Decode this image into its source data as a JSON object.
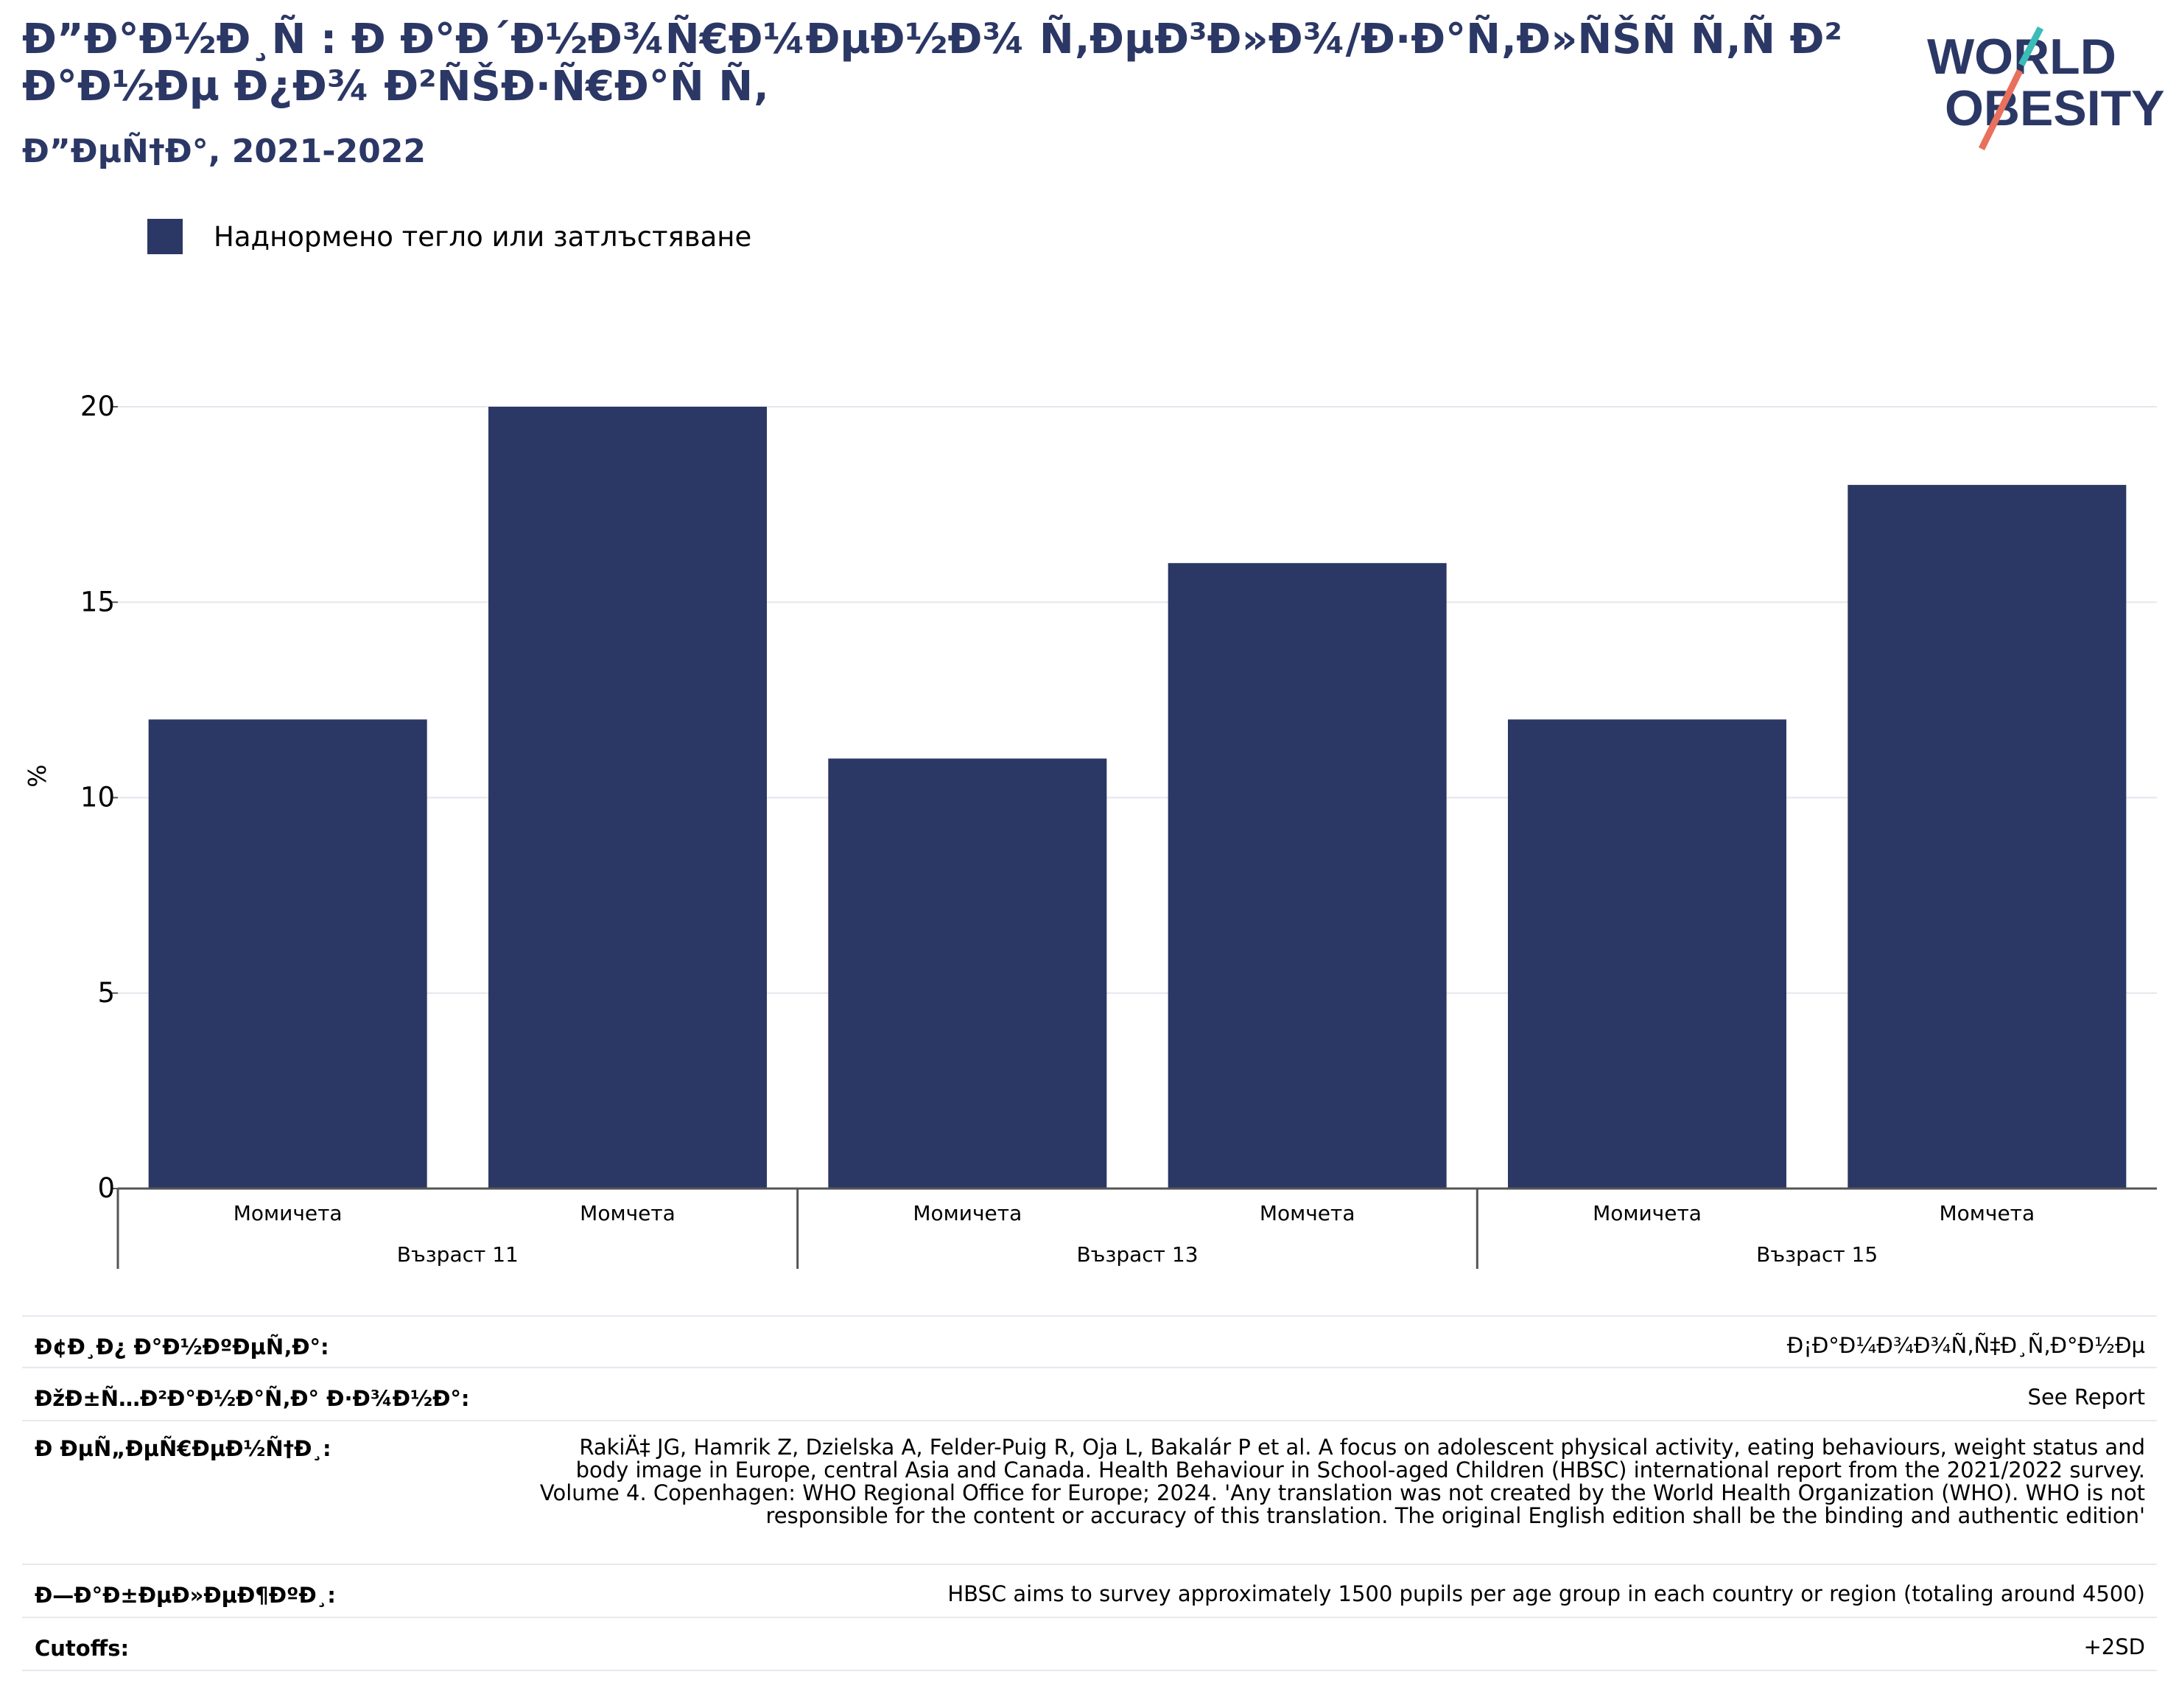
{
  "title": "Ð”Ð°Ð½Ð¸Ñ : Ð Ð°Ð´Ð½Ð¾Ñ€Ð¼ÐµÐ½Ð¾ Ñ‚ÐµÐ³Ð»Ð¾/Ð·Ð°Ñ‚Ð»ÑŠÑ Ñ‚Ñ Ð²Ð°Ð½Ðµ Ð¿Ð¾ Ð²ÑŠÐ·Ñ€Ð°Ñ Ñ‚",
  "subtitle": "Ð”ÐµÑ†Ð°, 2021-2022",
  "logo": {
    "line1": "WORLD",
    "line2": "OBESITY",
    "colors": {
      "text": "#2b3765",
      "teal": "#3bbcb8",
      "coral": "#e8705d"
    }
  },
  "colors": {
    "bar": "#2b3765",
    "grid": "#e6e6ee",
    "axis": "#555555"
  },
  "chart_data": {
    "type": "bar",
    "title": "",
    "ylabel": "%",
    "ylim": [
      0,
      20
    ],
    "yticks": [
      "0",
      "5",
      "10",
      "15",
      "20"
    ],
    "grid": true,
    "legend_position": "top-left",
    "series": [
      {
        "name": "Наднормено тегло или затлъстяване",
        "values": [
          12,
          20,
          11,
          16,
          12,
          18
        ]
      }
    ],
    "categories": [
      "Момичета",
      "Момчета",
      "Момичета",
      "Момчета",
      "Момичета",
      "Момчета"
    ],
    "groups": [
      {
        "label": "Възраст 11",
        "count": 2
      },
      {
        "label": "Възраст 13",
        "count": 2
      },
      {
        "label": "Възраст 15",
        "count": 2
      }
    ]
  },
  "meta": [
    {
      "key": "Ð¢Ð¸Ð¿ Ð°Ð½ÐºÐµÑ‚Ð°:",
      "value": "Ð¡Ð°Ð¼Ð¾Ð¾Ñ‚Ñ‡Ð¸Ñ‚Ð°Ð½Ðµ"
    },
    {
      "key": "ÐžÐ±Ñ…Ð²Ð°Ð½Ð°Ñ‚Ð° Ð·Ð¾Ð½Ð°:",
      "value": "See Report"
    },
    {
      "key": "Ð ÐµÑ„ÐµÑ€ÐµÐ½Ñ†Ð¸:",
      "value": "RakiÄ‡ JG, Hamrik Z, Dzielska A, Felder-Puig R, Oja L, Bakalár P et al. A focus on adolescent physical activity, eating behaviours, weight status and body image in Europe, central Asia and Canada. Health Behaviour in School-aged Children (HBSC) international report from the 2021/2022 survey. Volume 4. Copenhagen: WHO Regional Office for Europe; 2024. 'Any translation was not created by the World Health Organization (WHO). WHO is not responsible for the content or accuracy of this translation. The original English edition shall be the binding and authentic edition'"
    },
    {
      "key": "Ð—Ð°Ð±ÐµÐ»ÐµÐ¶ÐºÐ¸:",
      "value": "HBSC aims to survey approximately 1500 pupils per age group in each country or region (totaling around 4500)"
    },
    {
      "key": "Cutoffs:",
      "value": "+2SD"
    }
  ]
}
